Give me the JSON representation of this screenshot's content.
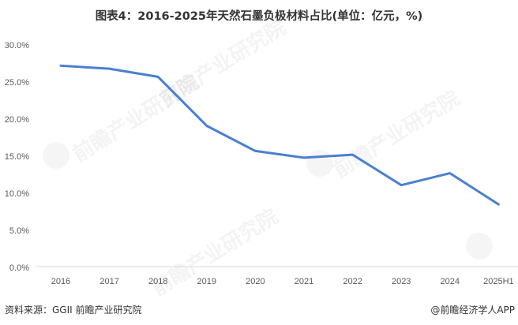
{
  "title": "图表4：2016-2025年天然石墨负极材料占比(单位：亿元，%)",
  "footer": {
    "source": "资料来源：GGII 前瞻产业研究院",
    "credit": "@前瞻经济学人APP"
  },
  "watermark": "前瞻产业研究院",
  "chart_data": {
    "type": "line",
    "title": "图表4：2016-2025年天然石墨负极材料占比(单位：亿元，%)",
    "xlabel": "",
    "ylabel": "",
    "categories": [
      "2016",
      "2017",
      "2018",
      "2019",
      "2020",
      "2021",
      "2022",
      "2023",
      "2024",
      "2025H1"
    ],
    "series": [
      {
        "name": "天然石墨负极材料占比",
        "values": [
          27.2,
          26.8,
          25.7,
          19.1,
          15.7,
          14.8,
          15.2,
          11.1,
          12.7,
          8.5
        ],
        "color": "#4A7FD1"
      }
    ],
    "yticks": [
      "0.0%",
      "5.0%",
      "10.0%",
      "15.0%",
      "20.0%",
      "25.0%",
      "30.0%"
    ],
    "ylim": [
      0,
      30
    ],
    "grid": false,
    "legend": "none"
  }
}
